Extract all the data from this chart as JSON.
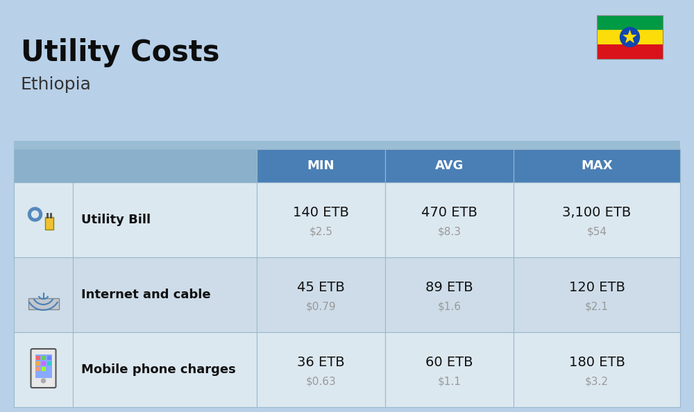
{
  "title": "Utility Costs",
  "subtitle": "Ethiopia",
  "background_color": "#b8d0e8",
  "header_bg": "#4a7fb5",
  "header_text_color": "#ffffff",
  "row_label_color": "#111111",
  "value_color": "#111111",
  "usd_color": "#999999",
  "border_color": "#9ab8cc",
  "icon_col_bg": "#a0bdd4",
  "label_col_header_bg": "#a0bdd4",
  "row_bg_odd": "#dce8f0",
  "row_bg_even": "#cddce8",
  "columns": [
    "MIN",
    "AVG",
    "MAX"
  ],
  "rows": [
    {
      "label": "Utility Bill",
      "values_etb": [
        "140 ETB",
        "470 ETB",
        "3,100 ETB"
      ],
      "values_usd": [
        "$2.5",
        "$8.3",
        "$54"
      ]
    },
    {
      "label": "Internet and cable",
      "values_etb": [
        "45 ETB",
        "89 ETB",
        "120 ETB"
      ],
      "values_usd": [
        "$0.79",
        "$1.6",
        "$2.1"
      ]
    },
    {
      "label": "Mobile phone charges",
      "values_etb": [
        "36 ETB",
        "60 ETB",
        "180 ETB"
      ],
      "values_usd": [
        "$0.63",
        "$1.1",
        "$3.2"
      ]
    }
  ],
  "title_fontsize": 30,
  "subtitle_fontsize": 18,
  "header_fontsize": 13,
  "label_fontsize": 13,
  "value_fontsize": 14,
  "usd_fontsize": 11,
  "flag_green": "#009A44",
  "flag_yellow": "#FCDD09",
  "flag_red": "#DA121A",
  "flag_blue": "#0F47AF"
}
